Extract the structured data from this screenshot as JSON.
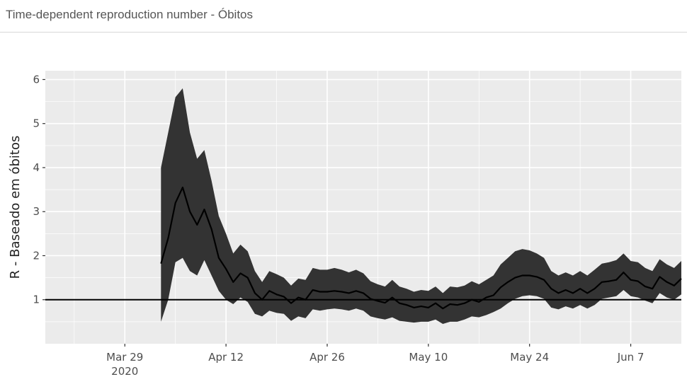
{
  "panel": {
    "title": "Time-dependent reproduction number - Óbitos"
  },
  "colors": {
    "panel_bg": "#ebebeb",
    "grid": "#ffffff",
    "ribbon": "#333333",
    "line": "#000000",
    "reference": "#000000"
  },
  "chart_data": {
    "type": "line",
    "title": "",
    "xlabel": "",
    "ylabel": "R - Baseado em óbitos",
    "xlim": [
      "2020-03-18",
      "2020-06-14"
    ],
    "ylim": [
      0,
      6.2
    ],
    "x_ticks": [
      {
        "date": "2020-03-29",
        "label": "Mar 29",
        "sublabel": "2020"
      },
      {
        "date": "2020-04-12",
        "label": "Apr 12",
        "sublabel": ""
      },
      {
        "date": "2020-04-26",
        "label": "Apr 26",
        "sublabel": ""
      },
      {
        "date": "2020-05-10",
        "label": "May 10",
        "sublabel": ""
      },
      {
        "date": "2020-05-24",
        "label": "May 24",
        "sublabel": ""
      },
      {
        "date": "2020-06-07",
        "label": "Jun 7",
        "sublabel": ""
      }
    ],
    "y_ticks": [
      1,
      2,
      3,
      4,
      5,
      6
    ],
    "reference_line": 1,
    "grid": true,
    "legend": "none",
    "series": [
      {
        "type": "line_with_ribbon",
        "x": [
          "2020-04-03",
          "2020-04-04",
          "2020-04-05",
          "2020-04-06",
          "2020-04-07",
          "2020-04-08",
          "2020-04-09",
          "2020-04-10",
          "2020-04-11",
          "2020-04-12",
          "2020-04-13",
          "2020-04-14",
          "2020-04-15",
          "2020-04-16",
          "2020-04-17",
          "2020-04-18",
          "2020-04-19",
          "2020-04-20",
          "2020-04-21",
          "2020-04-22",
          "2020-04-23",
          "2020-04-24",
          "2020-04-25",
          "2020-04-26",
          "2020-04-27",
          "2020-04-28",
          "2020-04-29",
          "2020-04-30",
          "2020-05-01",
          "2020-05-02",
          "2020-05-03",
          "2020-05-04",
          "2020-05-05",
          "2020-05-06",
          "2020-05-07",
          "2020-05-08",
          "2020-05-09",
          "2020-05-10",
          "2020-05-11",
          "2020-05-12",
          "2020-05-13",
          "2020-05-14",
          "2020-05-15",
          "2020-05-16",
          "2020-05-17",
          "2020-05-18",
          "2020-05-19",
          "2020-05-20",
          "2020-05-21",
          "2020-05-22",
          "2020-05-23",
          "2020-05-24",
          "2020-05-25",
          "2020-05-26",
          "2020-05-27",
          "2020-05-28",
          "2020-05-29",
          "2020-05-30",
          "2020-05-31",
          "2020-06-01",
          "2020-06-02",
          "2020-06-03",
          "2020-06-04",
          "2020-06-05",
          "2020-06-06",
          "2020-06-07",
          "2020-06-08",
          "2020-06-09",
          "2020-06-10",
          "2020-06-11",
          "2020-06-12",
          "2020-06-13",
          "2020-06-14"
        ],
        "y": [
          1.82,
          2.4,
          3.2,
          3.55,
          3.0,
          2.7,
          3.05,
          2.6,
          1.95,
          1.7,
          1.4,
          1.6,
          1.5,
          1.15,
          1.0,
          1.2,
          1.12,
          1.07,
          0.92,
          1.05,
          1.0,
          1.22,
          1.18,
          1.18,
          1.2,
          1.18,
          1.15,
          1.2,
          1.15,
          1.02,
          0.97,
          0.93,
          1.05,
          0.92,
          0.88,
          0.82,
          0.85,
          0.82,
          0.92,
          0.8,
          0.9,
          0.88,
          0.92,
          1.0,
          0.95,
          1.05,
          1.1,
          1.28,
          1.4,
          1.5,
          1.55,
          1.55,
          1.52,
          1.45,
          1.25,
          1.15,
          1.22,
          1.15,
          1.25,
          1.15,
          1.25,
          1.4,
          1.42,
          1.45,
          1.62,
          1.45,
          1.42,
          1.3,
          1.25,
          1.52,
          1.4,
          1.32,
          1.48
        ],
        "lower": [
          0.5,
          1.0,
          1.85,
          1.95,
          1.65,
          1.55,
          1.9,
          1.55,
          1.2,
          1.0,
          0.9,
          1.05,
          0.95,
          0.68,
          0.62,
          0.75,
          0.7,
          0.68,
          0.52,
          0.62,
          0.58,
          0.78,
          0.75,
          0.78,
          0.8,
          0.78,
          0.75,
          0.8,
          0.75,
          0.62,
          0.58,
          0.55,
          0.6,
          0.52,
          0.5,
          0.48,
          0.5,
          0.5,
          0.55,
          0.45,
          0.5,
          0.5,
          0.55,
          0.62,
          0.6,
          0.65,
          0.72,
          0.8,
          0.92,
          1.02,
          1.08,
          1.1,
          1.08,
          1.02,
          0.82,
          0.78,
          0.85,
          0.8,
          0.88,
          0.8,
          0.88,
          1.02,
          1.05,
          1.08,
          1.22,
          1.08,
          1.05,
          0.98,
          0.92,
          1.15,
          1.05,
          1.0,
          1.12
        ],
        "upper": [
          4.0,
          4.8,
          5.6,
          5.8,
          4.8,
          4.2,
          4.4,
          3.7,
          2.9,
          2.5,
          2.05,
          2.25,
          2.1,
          1.65,
          1.4,
          1.65,
          1.58,
          1.5,
          1.32,
          1.48,
          1.45,
          1.72,
          1.68,
          1.68,
          1.72,
          1.68,
          1.62,
          1.68,
          1.6,
          1.42,
          1.35,
          1.3,
          1.45,
          1.3,
          1.25,
          1.18,
          1.22,
          1.2,
          1.3,
          1.15,
          1.3,
          1.28,
          1.32,
          1.42,
          1.35,
          1.45,
          1.55,
          1.8,
          1.95,
          2.1,
          2.15,
          2.12,
          2.05,
          1.95,
          1.65,
          1.55,
          1.62,
          1.55,
          1.65,
          1.55,
          1.68,
          1.82,
          1.85,
          1.9,
          2.05,
          1.88,
          1.85,
          1.72,
          1.65,
          1.92,
          1.8,
          1.72,
          1.88
        ]
      }
    ]
  }
}
